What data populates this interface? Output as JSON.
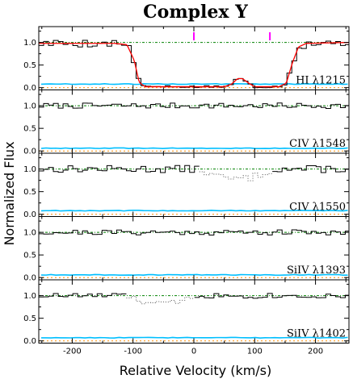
{
  "chart_data": {
    "type": "line",
    "title": "Complex Y",
    "xlabel": "Relative Velocity (km/s)",
    "ylabel": "Normalized Flux",
    "xlim": [
      -255,
      255
    ],
    "ylim": [
      -0.05,
      1.35
    ],
    "x_ticks": [
      "-200",
      "-100",
      "0",
      "100",
      "200"
    ],
    "y_ticks": [
      "0.0",
      "0.5",
      "1.0"
    ],
    "x_tick_values": [
      -200,
      -100,
      0,
      100,
      200
    ],
    "y_tick_values": [
      0,
      0.5,
      1.0
    ],
    "component_markers": [
      0,
      125
    ],
    "colors": {
      "data": "#000000",
      "fit": "#ff0000",
      "error": "#00bfff",
      "continuum": "#008000",
      "zero": "#ff8c00",
      "marker": "#ff00ff",
      "blend": "#555555"
    },
    "panels": [
      {
        "label": "HI λ1215",
        "mode": "hi",
        "error_level": 0.08,
        "fit": [
          [
            -255,
            0.98
          ],
          [
            -130,
            0.98
          ],
          [
            -110,
            0.95
          ],
          [
            -98,
            0.6
          ],
          [
            -90,
            0.12
          ],
          [
            -80,
            0.02
          ],
          [
            50,
            0.02
          ],
          [
            62,
            0.08
          ],
          [
            72,
            0.2
          ],
          [
            80,
            0.2
          ],
          [
            90,
            0.1
          ],
          [
            100,
            0.02
          ],
          [
            140,
            0.02
          ],
          [
            152,
            0.1
          ],
          [
            162,
            0.55
          ],
          [
            172,
            0.9
          ],
          [
            185,
            0.98
          ],
          [
            255,
            1.0
          ]
        ],
        "blend_range": null
      },
      {
        "label": "CIV λ1548",
        "mode": "flat",
        "error_level": 0.06,
        "noise": 0.06,
        "seed": 7,
        "blend_range": null
      },
      {
        "label": "CIV λ1550",
        "mode": "flat",
        "error_level": 0.08,
        "noise": 0.08,
        "seed": 13,
        "blend_range": [
          10,
          130
        ],
        "blend_depth": 0.22
      },
      {
        "label": "SiIV λ1393",
        "mode": "flat",
        "error_level": 0.06,
        "noise": 0.06,
        "seed": 21,
        "blend_range": null
      },
      {
        "label": "SiIV λ1402",
        "mode": "flat",
        "error_level": 0.07,
        "noise": 0.06,
        "seed": 33,
        "blend_range": [
          -110,
          0
        ],
        "blend_depth": 0.18
      }
    ]
  }
}
